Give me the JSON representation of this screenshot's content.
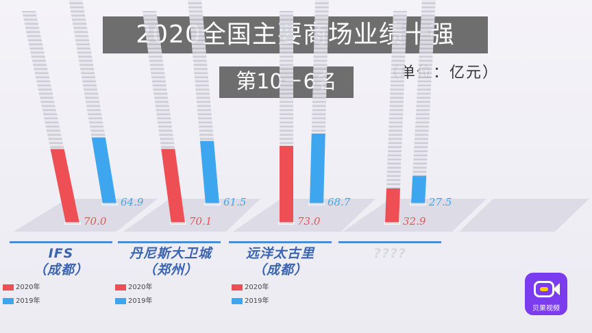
{
  "header": {
    "title": "2020全国主要商场业绩十强",
    "subtitle": "第10－6名",
    "unit": "（单位：亿元）"
  },
  "chart_data": {
    "type": "bar",
    "title": "2020全国主要商场业绩十强",
    "subtitle": "第10－6名",
    "unit": "亿元",
    "categories": [
      "IFS\n（成都）",
      "丹尼斯大卫城\n（郑州）",
      "远洋太古里\n（成都）",
      "????"
    ],
    "series": [
      {
        "name": "2020年",
        "color": "#ee4f55",
        "values": [
          70.0,
          70.1,
          73.0,
          32.9
        ],
        "labels": [
          "70.0",
          "70.1",
          "73.0",
          "32.9"
        ]
      },
      {
        "name": "2019年",
        "color": "#3ea6ee",
        "values": [
          64.9,
          61.5,
          68.7,
          27.5
        ],
        "labels": [
          "64.9",
          "61.5",
          "68.7",
          "27.5"
        ]
      }
    ]
  },
  "legend_groups": [
    {
      "items": [
        "2020年",
        "2019年"
      ]
    },
    {
      "items": [
        "2020年",
        "2019年"
      ]
    },
    {
      "items": [
        "2020年",
        "2019年"
      ]
    }
  ],
  "colors": {
    "accent": "#4a8ad8",
    "series2020": "#ee4f55",
    "series2019": "#3ea6ee",
    "title_bg": "#6e6e6e"
  },
  "watermark": {
    "app_name": "贝果视频",
    "icon": "camera-icon"
  }
}
